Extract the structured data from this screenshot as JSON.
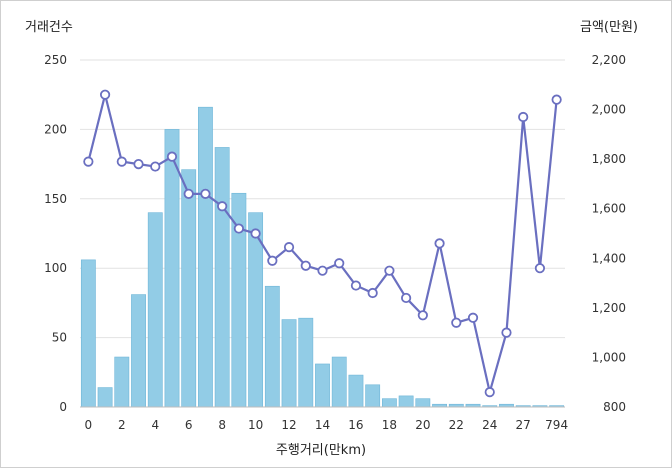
{
  "chart_data": {
    "type": "bar+line",
    "ylabel_left": "거래건수",
    "ylabel_right": "금액(만원)",
    "xlabel": "주행거리(만km)",
    "ylim_left": [
      0,
      250
    ],
    "ylim_right": [
      800,
      2200
    ],
    "yticks_left": [
      0,
      50,
      100,
      150,
      200,
      250
    ],
    "yticks_right": [
      "800",
      "1,000",
      "1,200",
      "1,400",
      "1,600",
      "1,800",
      "2,000",
      "2,200"
    ],
    "yticks_right_values": [
      800,
      1000,
      1200,
      1400,
      1600,
      1800,
      2000,
      2200
    ],
    "xtick_labels": [
      "0",
      "2",
      "4",
      "6",
      "8",
      "10",
      "12",
      "14",
      "16",
      "18",
      "20",
      "22",
      "24",
      "27",
      "794"
    ],
    "xtick_indices": [
      0,
      2,
      4,
      6,
      8,
      10,
      12,
      14,
      16,
      18,
      20,
      22,
      24,
      26,
      28
    ],
    "bars": [
      106,
      14,
      36,
      81,
      140,
      200,
      171,
      216,
      187,
      154,
      140,
      87,
      63,
      64,
      31,
      36,
      23,
      16,
      6,
      8,
      6,
      2,
      2,
      2,
      1,
      2,
      1,
      1,
      1
    ],
    "line": [
      1790,
      2060,
      1790,
      1780,
      1770,
      1810,
      1660,
      1660,
      1610,
      1520,
      1500,
      1390,
      1445,
      1370,
      1350,
      1380,
      1290,
      1260,
      1350,
      1240,
      1170,
      1460,
      1140,
      1160,
      860,
      1100,
      1970,
      1360,
      2040
    ],
    "grid": true,
    "bar_color": "#92cce6",
    "bar_border_color": "#6fb6d8",
    "line_color": "#6a6fc0"
  }
}
